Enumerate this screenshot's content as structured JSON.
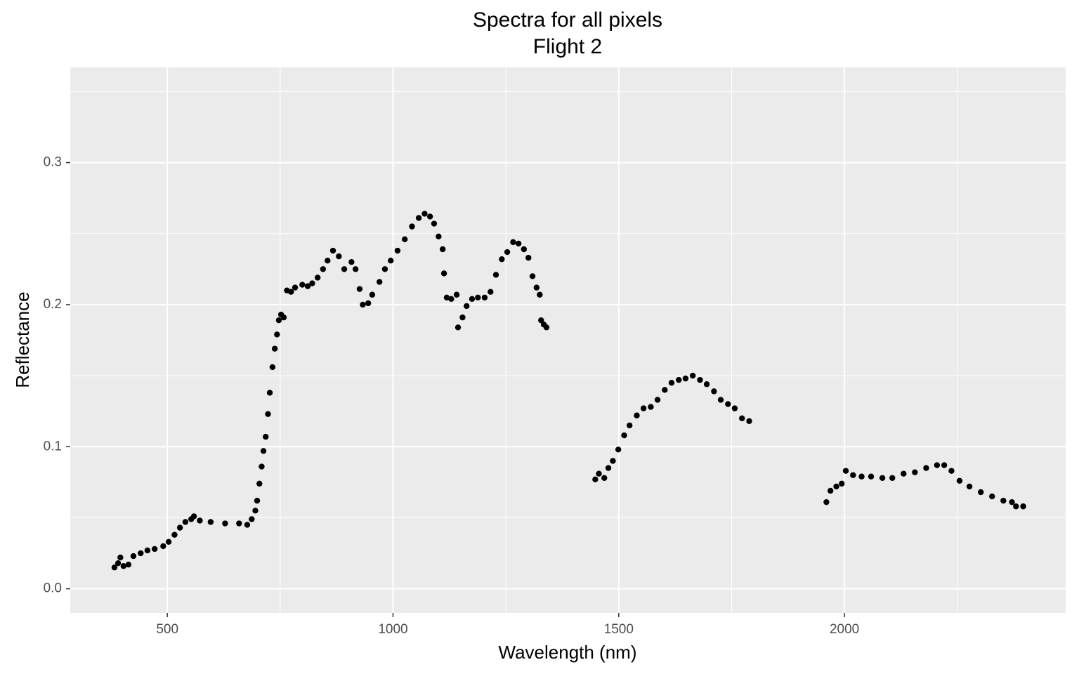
{
  "chart_data": {
    "type": "scatter",
    "title": "Spectra for all pixels",
    "subtitle": "Flight 2",
    "x_label": "Wavelength (nm)",
    "y_label": "Reflectance",
    "xlim": [
      285,
      2490
    ],
    "ylim": [
      -0.017,
      0.367
    ],
    "xticks": [
      500,
      1000,
      1500,
      2000
    ],
    "yticks": [
      {
        "value": 0,
        "label": "0.0"
      },
      0.1,
      0.2,
      0.3
    ],
    "grid": true,
    "series": [
      {
        "color": "#000000",
        "x": [
          383,
          391,
          396,
          403,
          414,
          425,
          441,
          456,
          472,
          491,
          503,
          516,
          528,
          540,
          553,
          559,
          572,
          596,
          628,
          659,
          677,
          687,
          695,
          699,
          704,
          709,
          713,
          718,
          723,
          727,
          733,
          738,
          743,
          747,
          752,
          758,
          765,
          774,
          783,
          799,
          811,
          821,
          833,
          845,
          855,
          867,
          880,
          892,
          908,
          917,
          926,
          933,
          945,
          954,
          970,
          982,
          995,
          1010,
          1026,
          1042,
          1057,
          1070,
          1082,
          1091,
          1101,
          1110,
          1113,
          1119,
          1129,
          1141,
          1144,
          1154,
          1163,
          1175,
          1188,
          1203,
          1216,
          1228,
          1241,
          1253,
          1266,
          1278,
          1290,
          1300,
          1309,
          1318,
          1325,
          1328,
          1334,
          1340,
          1448,
          1456,
          1468,
          1477,
          1487,
          1499,
          1512,
          1524,
          1540,
          1555,
          1571,
          1586,
          1602,
          1617,
          1633,
          1648,
          1664,
          1680,
          1695,
          1711,
          1726,
          1742,
          1757,
          1773,
          1789,
          1960,
          1969,
          1982,
          1994,
          2003,
          2019,
          2038,
          2059,
          2084,
          2106,
          2131,
          2156,
          2181,
          2205,
          2221,
          2237,
          2255,
          2277,
          2302,
          2327,
          2352,
          2371,
          2380,
          2396
        ],
        "values": [
          0.015,
          0.018,
          0.022,
          0.016,
          0.017,
          0.023,
          0.025,
          0.027,
          0.028,
          0.03,
          0.033,
          0.038,
          0.043,
          0.047,
          0.049,
          0.051,
          0.048,
          0.047,
          0.046,
          0.046,
          0.045,
          0.049,
          0.055,
          0.062,
          0.074,
          0.086,
          0.097,
          0.107,
          0.123,
          0.138,
          0.156,
          0.169,
          0.179,
          0.189,
          0.193,
          0.191,
          0.21,
          0.209,
          0.212,
          0.214,
          0.213,
          0.215,
          0.219,
          0.225,
          0.231,
          0.238,
          0.234,
          0.225,
          0.23,
          0.225,
          0.211,
          0.2,
          0.201,
          0.207,
          0.216,
          0.225,
          0.231,
          0.238,
          0.246,
          0.255,
          0.261,
          0.264,
          0.262,
          0.257,
          0.248,
          0.239,
          0.222,
          0.205,
          0.204,
          0.207,
          0.184,
          0.191,
          0.199,
          0.204,
          0.205,
          0.205,
          0.209,
          0.221,
          0.232,
          0.237,
          0.244,
          0.243,
          0.239,
          0.233,
          0.22,
          0.212,
          0.207,
          0.189,
          0.186,
          0.184,
          0.077,
          0.081,
          0.078,
          0.085,
          0.09,
          0.098,
          0.108,
          0.115,
          0.122,
          0.127,
          0.128,
          0.133,
          0.14,
          0.145,
          0.147,
          0.148,
          0.15,
          0.147,
          0.144,
          0.139,
          0.133,
          0.13,
          0.127,
          0.12,
          0.118,
          0.061,
          0.069,
          0.072,
          0.074,
          0.083,
          0.08,
          0.079,
          0.079,
          0.078,
          0.078,
          0.081,
          0.082,
          0.085,
          0.087,
          0.087,
          0.083,
          0.076,
          0.072,
          0.068,
          0.065,
          0.062,
          0.061,
          0.058,
          0.058
        ]
      }
    ]
  }
}
